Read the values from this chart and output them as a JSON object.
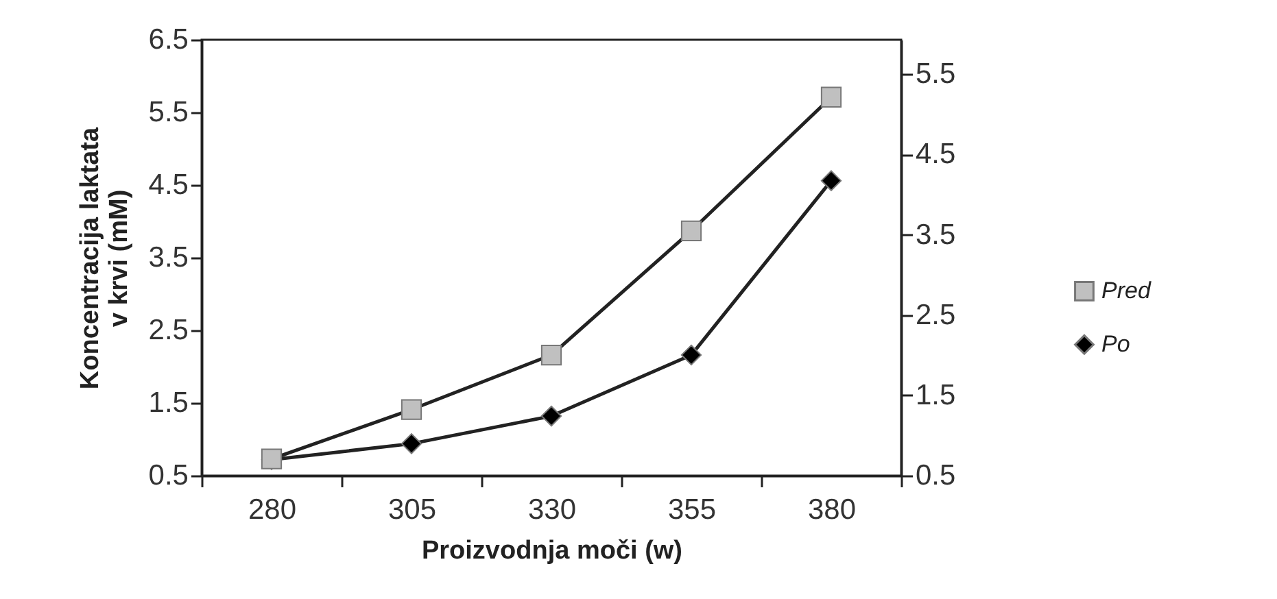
{
  "chart_data": {
    "type": "line",
    "xlabel": "Proizvodnja moči (w)",
    "ylabel": "Koncentracija laktata\nv krvi (mM)",
    "categories": [
      "280",
      "305",
      "330",
      "355",
      "380"
    ],
    "series": [
      {
        "name": "Pred",
        "color": "#c0c0c0",
        "marker": "square",
        "values": [
          0.73,
          1.41,
          2.16,
          3.87,
          5.71
        ]
      },
      {
        "name": "Po",
        "color": "#000000",
        "marker": "diamond",
        "values": [
          0.72,
          0.94,
          1.32,
          2.16,
          4.56
        ]
      }
    ],
    "ylim": [
      0.5,
      6.5
    ],
    "yticks": [
      0.5,
      1.5,
      2.5,
      3.5,
      4.5,
      5.5,
      6.5
    ],
    "y2lim": [
      0.5,
      5.93
    ],
    "y2ticks": [
      0.5,
      1.5,
      2.5,
      3.5,
      4.5,
      5.5
    ],
    "legend": "right",
    "line_style": "solid",
    "grid": false
  }
}
